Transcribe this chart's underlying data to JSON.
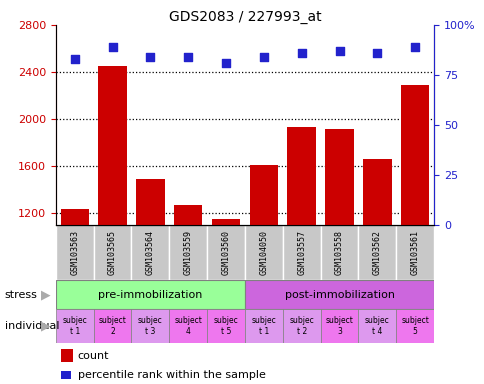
{
  "title": "GDS2083 / 227993_at",
  "samples": [
    "GSM103563",
    "GSM103565",
    "GSM103564",
    "GSM103559",
    "GSM103560",
    "GSM104050",
    "GSM103557",
    "GSM103558",
    "GSM103562",
    "GSM103561"
  ],
  "counts": [
    1230,
    2450,
    1490,
    1270,
    1150,
    1610,
    1930,
    1910,
    1660,
    2290
  ],
  "percentile_ranks": [
    83,
    89,
    84,
    84,
    81,
    84,
    86,
    87,
    86,
    89
  ],
  "ylim_left": [
    1100,
    2800
  ],
  "ylim_right": [
    0,
    100
  ],
  "yticks_left": [
    1200,
    1600,
    2000,
    2400,
    2800
  ],
  "yticks_right": [
    0,
    25,
    50,
    75,
    100
  ],
  "bar_color": "#cc0000",
  "dot_color": "#2222cc",
  "stress_groups": [
    {
      "label": "pre-immobilization",
      "start": 0,
      "end": 5,
      "color": "#99ff99"
    },
    {
      "label": "post-immobilization",
      "start": 5,
      "end": 10,
      "color": "#cc66dd"
    }
  ],
  "individuals": [
    {
      "label": "subjec\nt 1",
      "idx": 0,
      "color": "#dd99ee"
    },
    {
      "label": "subject\n2",
      "idx": 1,
      "color": "#ee77ee"
    },
    {
      "label": "subjec\nt 3",
      "idx": 2,
      "color": "#dd99ee"
    },
    {
      "label": "subject\n4",
      "idx": 3,
      "color": "#ee77ee"
    },
    {
      "label": "subjec\nt 5",
      "idx": 4,
      "color": "#ee77ee"
    },
    {
      "label": "subjec\nt 1",
      "idx": 5,
      "color": "#dd99ee"
    },
    {
      "label": "subjec\nt 2",
      "idx": 6,
      "color": "#dd99ee"
    },
    {
      "label": "subject\n3",
      "idx": 7,
      "color": "#ee77ee"
    },
    {
      "label": "subjec\nt 4",
      "idx": 8,
      "color": "#dd99ee"
    },
    {
      "label": "subject\n5",
      "idx": 9,
      "color": "#ee77ee"
    }
  ],
  "left_label_color": "#cc0000",
  "right_label_color": "#2222cc",
  "sample_bg_color": "#c8c8c8"
}
